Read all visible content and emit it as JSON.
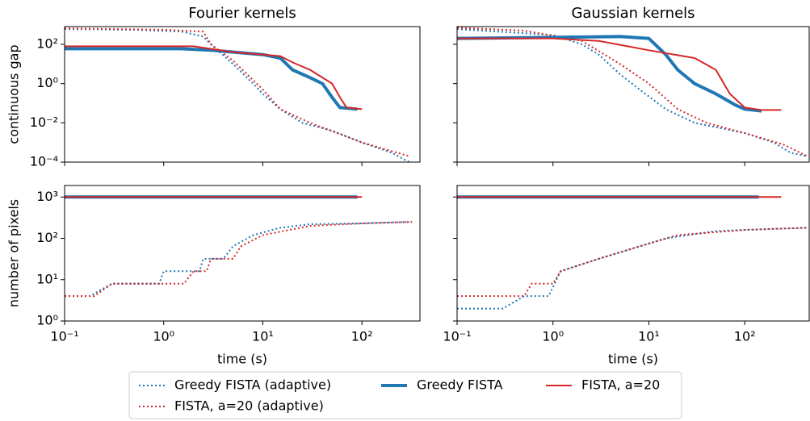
{
  "chart_data": [
    {
      "type": "line",
      "title": "Fourier kernels",
      "ylabel": "continuous gap",
      "xscale": "log",
      "yscale": "log",
      "xlim": [
        0.1,
        385
      ],
      "ylim": [
        0.0001,
        800
      ],
      "xticks": [
        0.1,
        1,
        10,
        100
      ],
      "yticks": [
        {
          "value": 0.0001,
          "label": "10⁻⁴"
        },
        {
          "value": 0.01,
          "label": "10⁻²"
        },
        {
          "value": 1,
          "label": "10⁰"
        },
        {
          "value": 100,
          "label": "10²"
        }
      ],
      "show_xticklabels": false,
      "show_yticklabels": true,
      "series": [
        {
          "name": "Greedy FISTA (adaptive)",
          "color": "#1f77b4",
          "dash": "dotted",
          "width": 2,
          "x": [
            0.1,
            0.5,
            1.5,
            2.5,
            3,
            5,
            8,
            10,
            15,
            25,
            50,
            100,
            200,
            300
          ],
          "values": [
            600,
            550,
            450,
            250,
            100,
            10,
            1,
            0.3,
            0.05,
            0.01,
            0.004,
            0.001,
            0.0003,
            0.0001
          ]
        },
        {
          "name": "FISTA, a=20 (adaptive)",
          "color": "#d62728",
          "dash": "dotted",
          "width": 2,
          "x": [
            0.1,
            1,
            2.5,
            3,
            5,
            10,
            15,
            30,
            100,
            300
          ],
          "values": [
            650,
            550,
            450,
            100,
            15,
            0.5,
            0.05,
            0.01,
            0.001,
            0.0002
          ]
        },
        {
          "name": "Greedy FISTA",
          "color": "#1f77b4",
          "dash": "solid",
          "width": 4,
          "x": [
            0.1,
            1.5,
            3,
            10,
            15,
            20,
            30,
            40,
            50,
            60,
            90
          ],
          "values": [
            60,
            60,
            50,
            30,
            20,
            5,
            2,
            1,
            0.2,
            0.06,
            0.05
          ]
        },
        {
          "name": "FISTA, a=20",
          "color": "#d62728",
          "dash": "solid",
          "width": 2,
          "x": [
            0.1,
            2,
            5,
            10,
            15,
            20,
            30,
            50,
            60,
            70,
            100
          ],
          "values": [
            80,
            80,
            40,
            30,
            25,
            12,
            5,
            1,
            0.2,
            0.06,
            0.05
          ]
        }
      ]
    },
    {
      "type": "line",
      "title": "Gaussian kernels",
      "xscale": "log",
      "yscale": "log",
      "xlim": [
        0.1,
        470
      ],
      "ylim": [
        0.0001,
        800
      ],
      "xticks": [
        0.1,
        1,
        10,
        100
      ],
      "yticks": [
        0.0001,
        0.01,
        1,
        100
      ],
      "show_xticklabels": false,
      "show_yticklabels": false,
      "series": [
        {
          "color": "#1f77b4",
          "dash": "dotted",
          "width": 2,
          "x": [
            0.1,
            1,
            2,
            3,
            5,
            8,
            15,
            30,
            100,
            200,
            300,
            450
          ],
          "values": [
            600,
            300,
            100,
            30,
            3,
            0.5,
            0.05,
            0.01,
            0.003,
            0.001,
            0.0003,
            0.0002
          ]
        },
        {
          "color": "#d62728",
          "dash": "dotted",
          "width": 2,
          "x": [
            0.1,
            0.5,
            2,
            5,
            10,
            20,
            40,
            100,
            250,
            450
          ],
          "values": [
            700,
            500,
            150,
            10,
            1,
            0.05,
            0.01,
            0.003,
            0.0008,
            0.0002
          ]
        },
        {
          "color": "#1f77b4",
          "dash": "solid",
          "width": 4,
          "x": [
            0.1,
            5,
            10,
            15,
            20,
            30,
            50,
            80,
            100,
            150
          ],
          "values": [
            200,
            250,
            200,
            30,
            5,
            1,
            0.3,
            0.08,
            0.05,
            0.04
          ]
        },
        {
          "color": "#d62728",
          "dash": "solid",
          "width": 2,
          "x": [
            0.1,
            1,
            3,
            10,
            30,
            50,
            70,
            100,
            150,
            240
          ],
          "values": [
            200,
            200,
            150,
            50,
            20,
            5,
            0.3,
            0.06,
            0.045,
            0.045
          ]
        }
      ]
    },
    {
      "type": "line",
      "xlabel": "time (s)",
      "ylabel": "number of pixels",
      "xscale": "log",
      "yscale": "log",
      "xlim": [
        0.1,
        385
      ],
      "ylim": [
        1,
        1900
      ],
      "xticks": [
        {
          "value": 0.1,
          "label": "10⁻¹"
        },
        {
          "value": 1,
          "label": "10⁰"
        },
        {
          "value": 10,
          "label": "10¹"
        },
        {
          "value": 100,
          "label": "10²"
        }
      ],
      "yticks": [
        {
          "value": 1,
          "label": "10⁰"
        },
        {
          "value": 10,
          "label": "10¹"
        },
        {
          "value": 100,
          "label": "10²"
        },
        {
          "value": 1000,
          "label": "10³"
        }
      ],
      "show_xticklabels": true,
      "show_yticklabels": true,
      "series": [
        {
          "color": "#1f77b4",
          "dash": "dotted",
          "width": 2,
          "x": [
            0.1,
            0.18,
            0.3,
            0.9,
            1,
            2.3,
            2.5,
            4,
            5,
            8,
            15,
            30,
            100,
            300
          ],
          "values": [
            4,
            4,
            8,
            8,
            16,
            16,
            32,
            32,
            64,
            120,
            180,
            220,
            230,
            250
          ]
        },
        {
          "color": "#d62728",
          "dash": "dotted",
          "width": 2,
          "x": [
            0.1,
            0.2,
            0.3,
            1.6,
            2,
            2.7,
            3,
            5,
            6,
            10,
            30,
            100,
            320
          ],
          "values": [
            4,
            4,
            8,
            8,
            16,
            16,
            32,
            32,
            64,
            120,
            200,
            230,
            250
          ]
        },
        {
          "color": "#1f77b4",
          "dash": "solid",
          "width": 4,
          "x": [
            0.1,
            90
          ],
          "values": [
            1000,
            1000
          ]
        },
        {
          "color": "#d62728",
          "dash": "solid",
          "width": 2,
          "x": [
            0.1,
            100
          ],
          "values": [
            1000,
            1000
          ]
        }
      ]
    },
    {
      "type": "line",
      "xlabel": "time (s)",
      "xscale": "log",
      "yscale": "log",
      "xlim": [
        0.1,
        470
      ],
      "ylim": [
        1,
        1900
      ],
      "xticks": [
        {
          "value": 0.1,
          "label": "10⁻¹"
        },
        {
          "value": 1,
          "label": "10⁰"
        },
        {
          "value": 10,
          "label": "10¹"
        },
        {
          "value": 100,
          "label": "10²"
        }
      ],
      "yticks": [
        1,
        10,
        100,
        1000
      ],
      "show_xticklabels": true,
      "show_yticklabels": false,
      "series": [
        {
          "color": "#1f77b4",
          "dash": "dotted",
          "width": 2,
          "x": [
            0.1,
            0.3,
            0.5,
            0.9,
            1.2,
            3,
            8,
            15,
            50,
            200,
            450
          ],
          "values": [
            2,
            2,
            4,
            4,
            16,
            32,
            64,
            100,
            150,
            170,
            180
          ]
        },
        {
          "color": "#d62728",
          "dash": "dotted",
          "width": 2,
          "x": [
            0.1,
            0.5,
            0.6,
            1,
            1.2,
            3,
            8,
            20,
            100,
            450
          ],
          "values": [
            4,
            4,
            8,
            8,
            16,
            32,
            64,
            120,
            160,
            180
          ]
        },
        {
          "color": "#1f77b4",
          "dash": "solid",
          "width": 4,
          "x": [
            0.1,
            140
          ],
          "values": [
            1000,
            1000
          ]
        },
        {
          "color": "#d62728",
          "dash": "solid",
          "width": 2,
          "x": [
            0.1,
            240
          ],
          "values": [
            1000,
            1000
          ]
        }
      ]
    }
  ]
}
